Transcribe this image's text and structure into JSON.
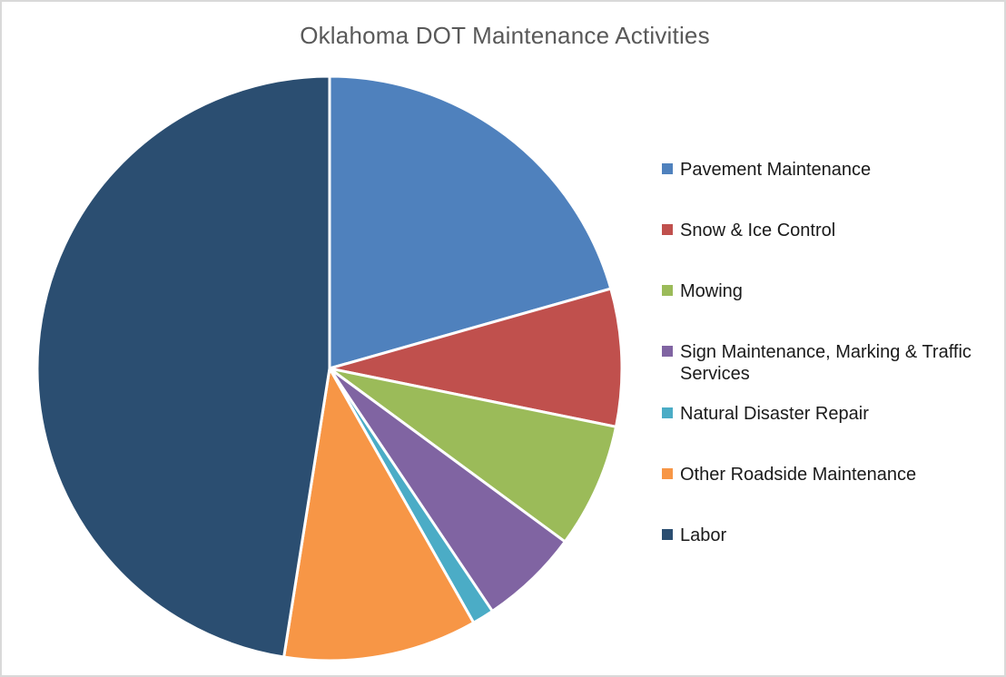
{
  "window": {
    "background_color": "#FFFFFF",
    "border_color": "#D9D9D9"
  },
  "chart_data": {
    "type": "pie",
    "title": "Oklahoma DOT Maintenance Activities",
    "title_color": "#595959",
    "categories": [
      "Pavement Maintenance",
      "Snow & Ice Control",
      "Mowing",
      "Sign Maintenance, Marking & Traffic Services",
      "Natural Disaster Repair",
      "Other Roadside Maintenance",
      "Labor"
    ],
    "values": [
      20.6,
      7.6,
      6.9,
      5.5,
      1.2,
      10.7,
      47.5
    ],
    "values_unit": "percent (estimated from slice angles; no data labels shown)",
    "colors": [
      "#4F81BD",
      "#C0504D",
      "#9BBB59",
      "#8064A2",
      "#4BACC6",
      "#F79646",
      "#2B4E71"
    ],
    "start_angle_deg": 0,
    "direction": "clockwise",
    "slice_divider_color": "#FFFFFF",
    "legend_position": "right",
    "legend_marker": "square",
    "legend_text_color": "#1A1A1A"
  }
}
